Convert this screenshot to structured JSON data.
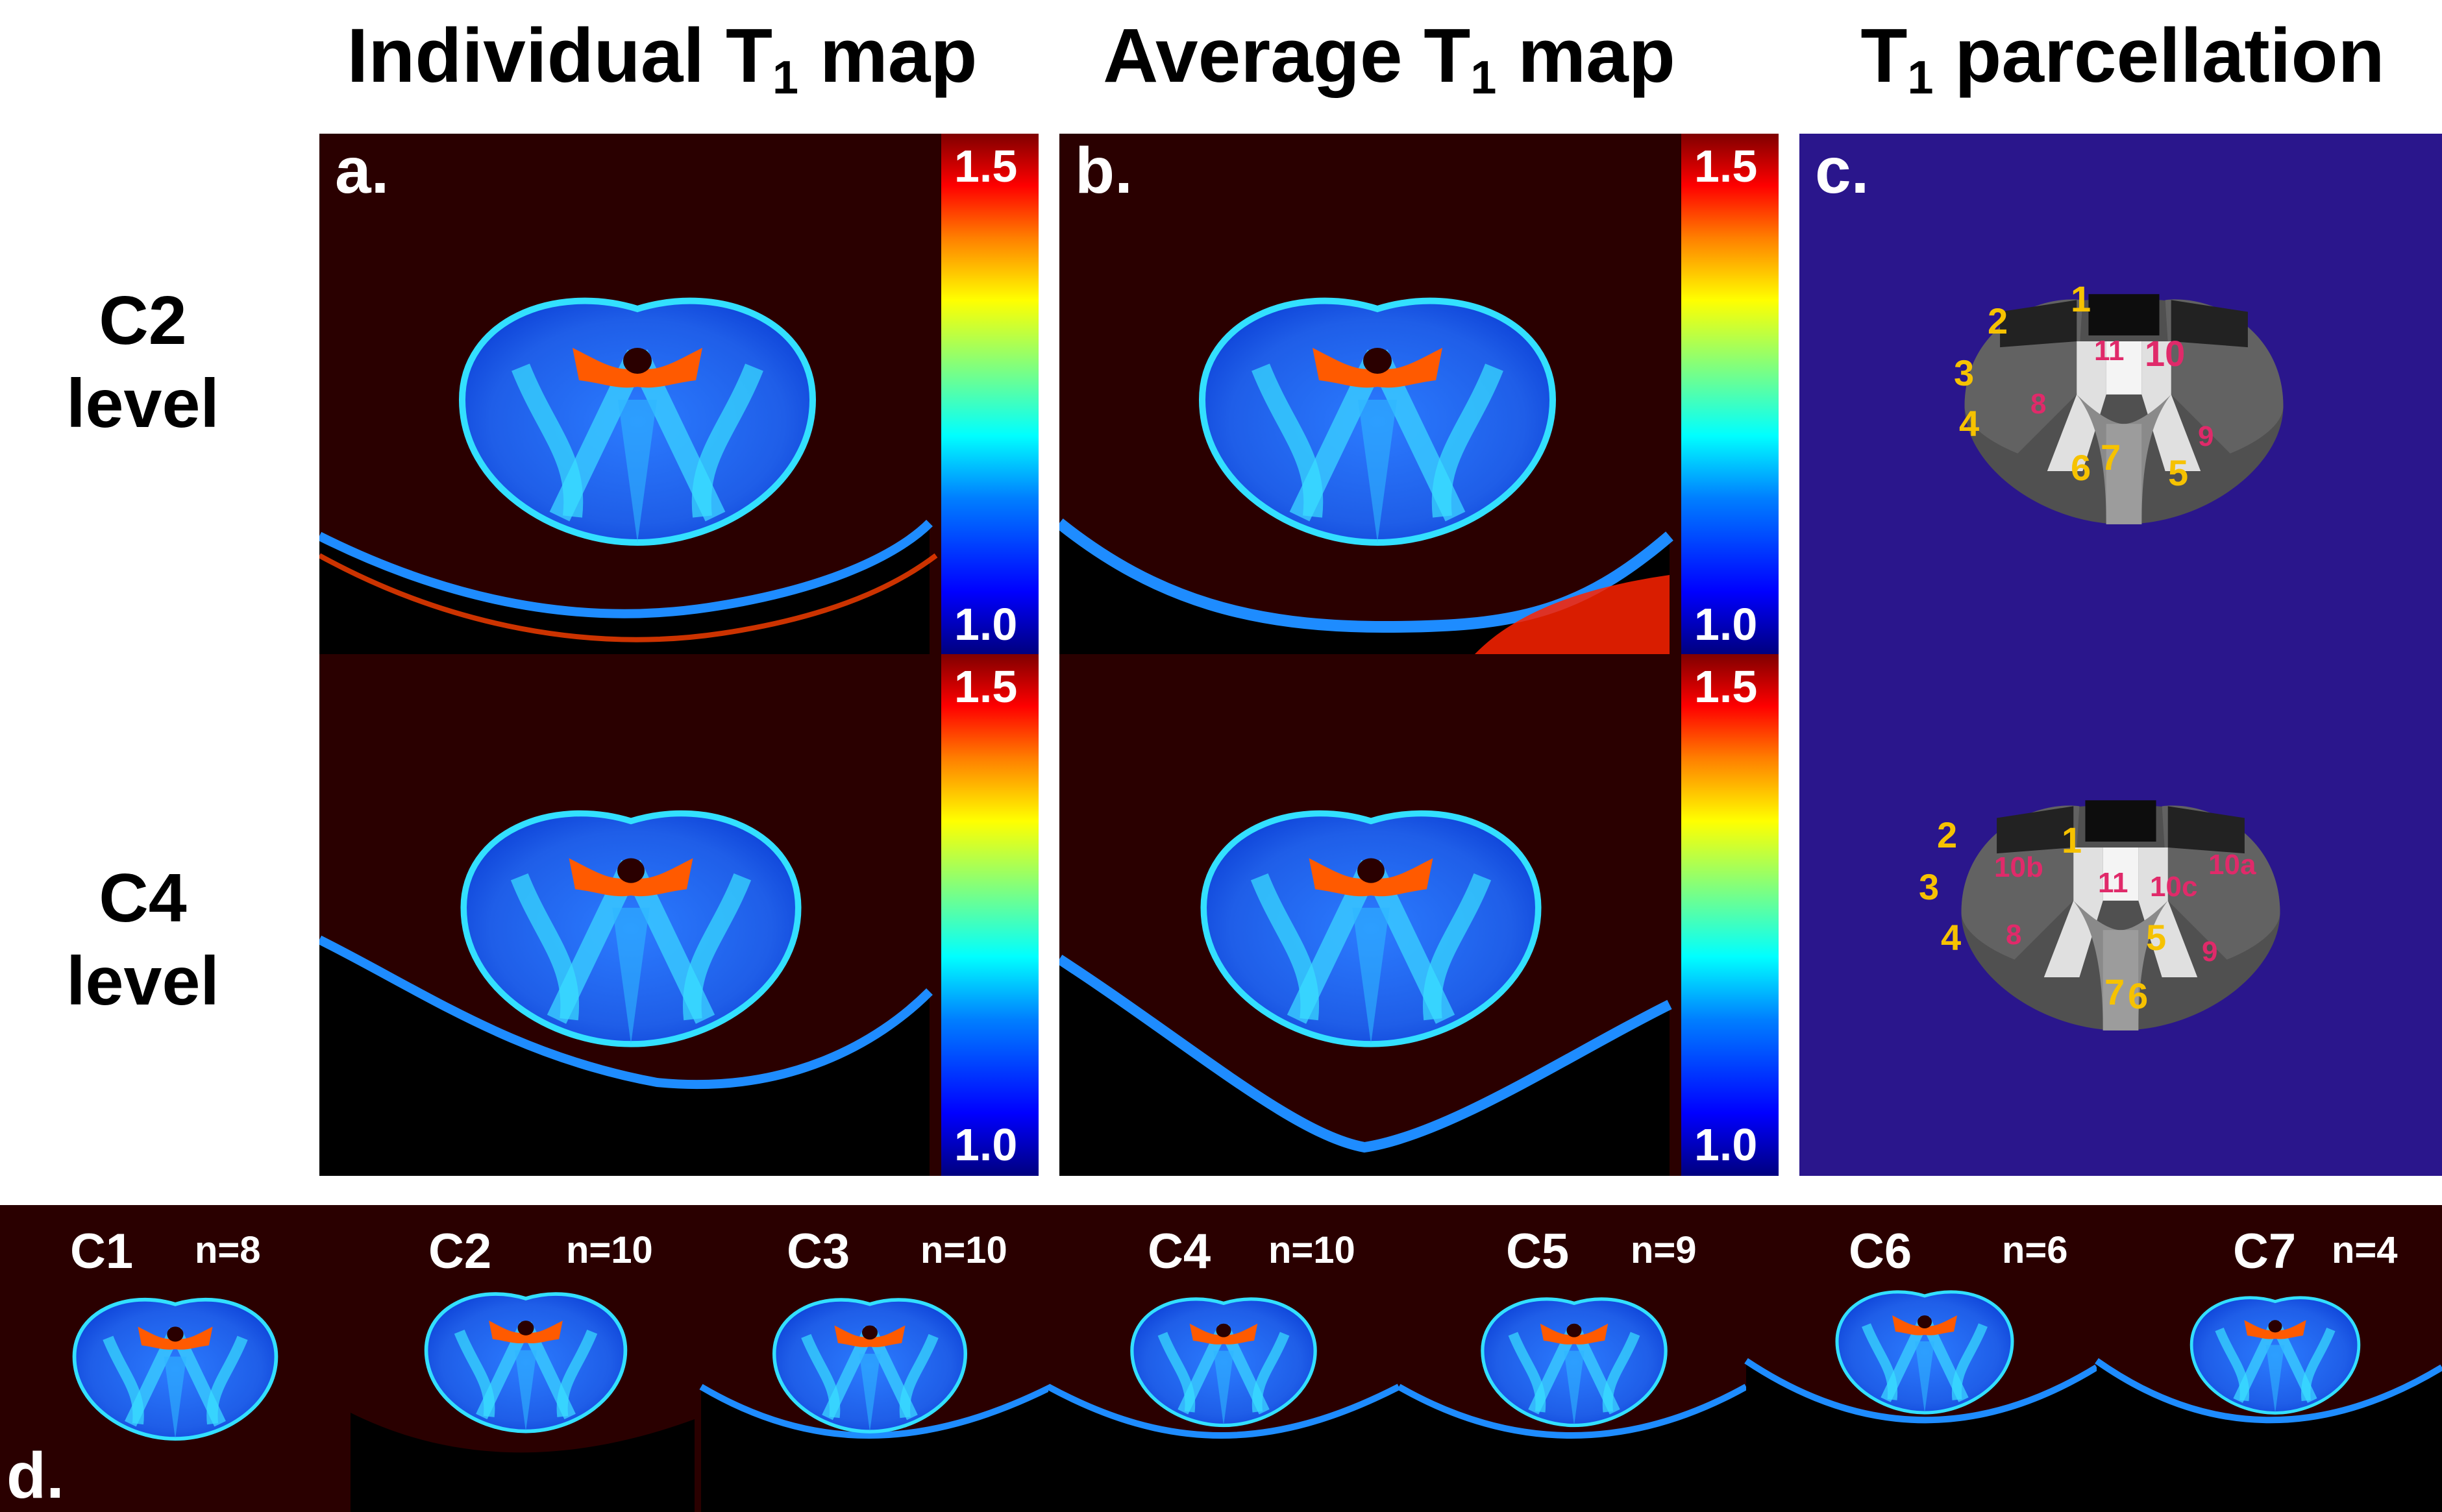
{
  "figure": {
    "column_titles": {
      "individual": {
        "main": "Individual T",
        "sub": "1",
        "tail": " map"
      },
      "average": {
        "main": "Average T",
        "sub": "1",
        "tail": " map"
      },
      "parcellation": {
        "main": "T",
        "sub": "1",
        "tail": " parcellation"
      }
    },
    "row_labels": {
      "c2": {
        "line1": "C2",
        "line2": "level"
      },
      "c4": {
        "line1": "C4",
        "line2": "level"
      }
    },
    "panel_letters": {
      "a": "a.",
      "b": "b.",
      "c": "c.",
      "d": "d."
    },
    "colorbar": {
      "max_label": "1.5",
      "min_label": "1.0",
      "max": 1.5,
      "min": 1.0,
      "colors": [
        "#00007f",
        "#0000ff",
        "#007fff",
        "#00ffff",
        "#7fff7f",
        "#ffff00",
        "#ff7f00",
        "#ff0000",
        "#7f0000"
      ]
    },
    "parcellation_c2": {
      "yellow": [
        "1",
        "2",
        "3",
        "4",
        "5",
        "6",
        "7"
      ],
      "pink": [
        "8",
        "9",
        "10",
        "11"
      ]
    },
    "parcellation_c4": {
      "yellow": [
        "1",
        "2",
        "3",
        "4",
        "5",
        "6",
        "7"
      ],
      "pink": [
        "8",
        "9",
        "10a",
        "10b",
        "10c",
        "11"
      ]
    },
    "strip": [
      {
        "level": "C1",
        "n": "n=8"
      },
      {
        "level": "C2",
        "n": "n=10"
      },
      {
        "level": "C3",
        "n": "n=10"
      },
      {
        "level": "C4",
        "n": "n=10"
      },
      {
        "level": "C5",
        "n": "n=9"
      },
      {
        "level": "C6",
        "n": "n=6"
      },
      {
        "level": "C7",
        "n": "n=4"
      }
    ],
    "colors": {
      "map_background": "#2a0000",
      "parcellation_background": "#2a168c",
      "cord_blue": "#1e6cff",
      "highlight_red": "#ff3a00",
      "label_yellow": "#f6c200",
      "label_pink": "#e02a6a"
    }
  }
}
